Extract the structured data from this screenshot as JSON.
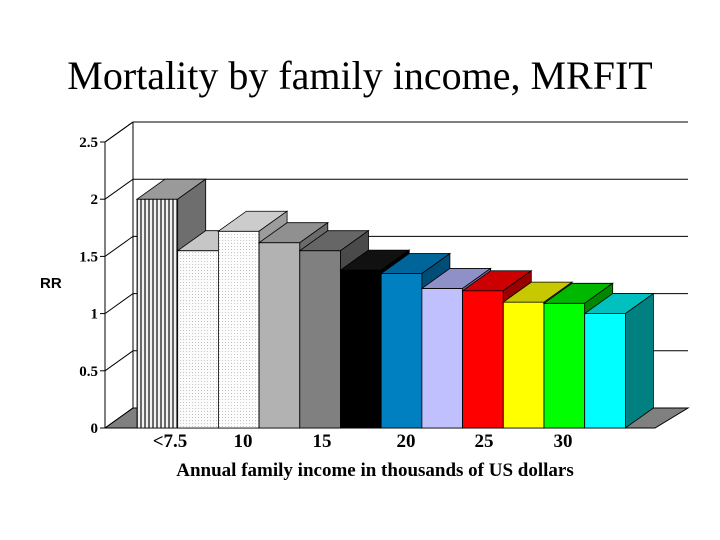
{
  "chart_data": {
    "type": "bar",
    "title": "Mortality by family income, MRFIT",
    "ylabel": "RR",
    "xlabel": "Annual family income in thousands of US dollars",
    "ylim": [
      0,
      2.5
    ],
    "yticks": [
      "0",
      "0.5",
      "1",
      "1.5",
      "2",
      "2.5"
    ],
    "xtick_labels": [
      "<7.5",
      "10",
      "15",
      "20",
      "25",
      "30"
    ],
    "grid": true,
    "values": [
      2.0,
      1.55,
      1.72,
      1.62,
      1.55,
      1.38,
      1.35,
      1.22,
      1.2,
      1.1,
      1.09,
      1.0
    ],
    "colors": [
      {
        "front": "#bbbbbb",
        "top": "#9a9a9a",
        "side": "#6e6e6e",
        "pattern": "vstripe"
      },
      {
        "front": "#ececec",
        "top": "#c6c6c6",
        "side": "#9a9a9a",
        "pattern": "dots"
      },
      {
        "front": "#f6f6f6",
        "top": "#cccccc",
        "side": "#9c9c9c",
        "pattern": "dots"
      },
      {
        "front": "#b2b2b2",
        "top": "#909090",
        "side": "#6b6b6b"
      },
      {
        "front": "#808080",
        "top": "#666666",
        "side": "#4a4a4a"
      },
      {
        "front": "#000000",
        "top": "#111111",
        "side": "#000000"
      },
      {
        "front": "#0080c0",
        "top": "#00659a",
        "side": "#004e77"
      },
      {
        "front": "#c0c0ff",
        "top": "#9090c8",
        "side": "#7070a8"
      },
      {
        "front": "#ff0000",
        "top": "#cc0000",
        "side": "#990000"
      },
      {
        "front": "#ffff00",
        "top": "#c8c800",
        "side": "#9a9a00"
      },
      {
        "front": "#00ff00",
        "top": "#00b800",
        "side": "#008800"
      },
      {
        "front": "#00ffff",
        "top": "#00c0c0",
        "side": "#008080"
      }
    ]
  }
}
